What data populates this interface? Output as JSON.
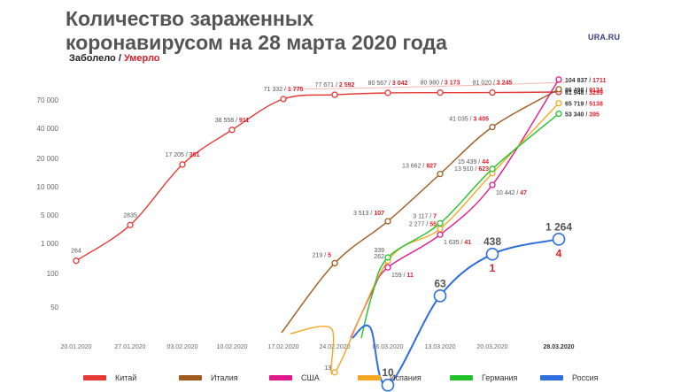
{
  "header": {
    "title_line1": "Количество зараженных",
    "title_line2": "коронавирусом на 28 марта 2020 года",
    "logo": "URA.RU",
    "legend_sick": "Заболело",
    "legend_sep": " / ",
    "legend_dead": "Умерло"
  },
  "colors": {
    "Китай": "#e53935",
    "Италия": "#a05a1e",
    "США": "#e0188c",
    "Испания": "#f5a623",
    "Германия": "#22c22a",
    "Россия": "#2f6fdc",
    "death_text": "#e0202a",
    "label_text": "#555555",
    "axis_text": "#666666"
  },
  "chart_data": {
    "type": "line",
    "title": "Количество зараженных коронавирусом на 28 марта 2020 года",
    "x_ticks": [
      "20.01.2020",
      "27.01.2020",
      "03.02.2020",
      "10.02.2020",
      "17.02.2020",
      "24.02.2020",
      "06.03.2020",
      "13.03.2020",
      "20.03.2020",
      "28.03.2020"
    ],
    "y_ticks": [
      "70 000",
      "40 000",
      "20 000",
      "10 000",
      "5 000",
      "1 000",
      "100",
      "50"
    ],
    "legend_position": "bottom",
    "series": [
      {
        "name": "Китай",
        "points": [
          {
            "x": "20.01.2020",
            "label": "264"
          },
          {
            "x": "27.01.2020",
            "label": "2835"
          },
          {
            "x": "03.02.2020",
            "label": "17 205",
            "deaths": "361"
          },
          {
            "x": "10.02.2020",
            "label": "38 558",
            "deaths": "911"
          },
          {
            "x": "17.02.2020",
            "label": "71 332",
            "deaths": "1 775"
          },
          {
            "x": "24.02.2020",
            "label": "77 671",
            "deaths": "2 592"
          },
          {
            "x": "06.03.2020",
            "label": "80 567",
            "deaths": "3 042"
          },
          {
            "x": "13.03.2020",
            "label": "80 980",
            "deaths": "3 173"
          },
          {
            "x": "20.03.2020",
            "label": "81 020",
            "deaths": "3 245"
          },
          {
            "x": "28.03.2020",
            "label": "81 948",
            "deaths": "3299"
          }
        ]
      },
      {
        "name": "Италия",
        "points": [
          {
            "x": "24.02.2020",
            "label": "219",
            "deaths": "5"
          },
          {
            "x": "06.03.2020",
            "label": "3 513",
            "deaths": "107"
          },
          {
            "x": "13.03.2020",
            "label": "13 662",
            "deaths": "827"
          },
          {
            "x": "20.03.2020",
            "label": "41 035",
            "deaths": "3 405"
          },
          {
            "x": "28.03.2020",
            "label": "86 498",
            "deaths": "9134"
          }
        ]
      },
      {
        "name": "США",
        "points": [
          {
            "x": "06.03.2020",
            "label": "159",
            "deaths": "11"
          },
          {
            "x": "13.03.2020",
            "label": "1 635",
            "deaths": "41"
          },
          {
            "x": "20.03.2020",
            "label": "10 442",
            "deaths": "47"
          },
          {
            "x": "28.03.2020",
            "label": "104 837",
            "deaths": "1711"
          }
        ]
      },
      {
        "name": "Испания",
        "points": [
          {
            "x": "24.02.2020",
            "label": "13"
          },
          {
            "x": "06.03.2020",
            "label": "262"
          },
          {
            "x": "13.03.2020",
            "label": "2 277",
            "deaths": "55"
          },
          {
            "x": "20.03.2020",
            "label": "13 910",
            "deaths": "623"
          },
          {
            "x": "28.03.2020",
            "label": "65 719",
            "deaths": "5138"
          }
        ]
      },
      {
        "name": "Германия",
        "points": [
          {
            "x": "06.03.2020",
            "label": "339"
          },
          {
            "x": "13.03.2020",
            "label": "3 117",
            "deaths": "7"
          },
          {
            "x": "20.03.2020",
            "label": "15 439",
            "deaths": "44"
          },
          {
            "x": "28.03.2020",
            "label": "53 340",
            "deaths": "395"
          }
        ]
      },
      {
        "name": "Россия",
        "points": [
          {
            "x": "06.03.2020",
            "label": "10"
          },
          {
            "x": "13.03.2020",
            "label": "63"
          },
          {
            "x": "20.03.2020",
            "label": "438",
            "deaths": "1"
          },
          {
            "x": "28.03.2020",
            "label": "1 264",
            "deaths": "4"
          }
        ]
      }
    ]
  }
}
